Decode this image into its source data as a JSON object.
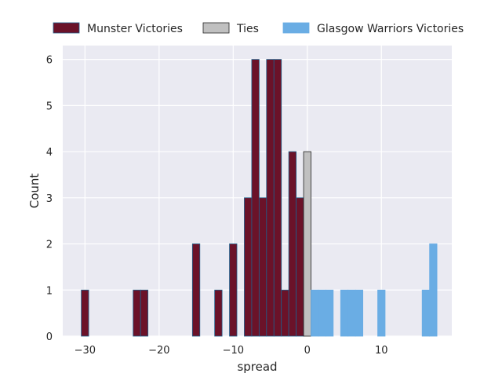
{
  "chart_data": {
    "type": "bar",
    "xlabel": "spread",
    "ylabel": "Count",
    "xlim": [
      -33,
      19.5
    ],
    "ylim": [
      0,
      6.3
    ],
    "xticks": [
      -30,
      -20,
      -10,
      0,
      10
    ],
    "yticks": [
      0,
      1,
      2,
      3,
      4,
      5,
      6
    ],
    "grid": true,
    "legend_position": "top",
    "bin_width": 1,
    "series": [
      {
        "name": "Munster Victories",
        "color": "#6b1229",
        "edge": "#1f5f8b",
        "x": [
          -30,
          -23,
          -22,
          -15,
          -12,
          -10,
          -8,
          -7,
          -6,
          -5,
          -4,
          -3,
          -2,
          -1
        ],
        "values": [
          1,
          1,
          1,
          2,
          1,
          2,
          3,
          6,
          3,
          6,
          6,
          1,
          4,
          3
        ]
      },
      {
        "name": "Ties",
        "color": "#c0c0c0",
        "edge": "#222222",
        "x": [
          0
        ],
        "values": [
          4
        ]
      },
      {
        "name": "Glasgow Warriors Victories",
        "color": "#6aade4",
        "edge": "#6aade4",
        "x": [
          1,
          2,
          3,
          5,
          6,
          7,
          10,
          16,
          17
        ],
        "values": [
          1,
          1,
          1,
          1,
          1,
          1,
          1,
          1,
          2
        ]
      }
    ]
  }
}
